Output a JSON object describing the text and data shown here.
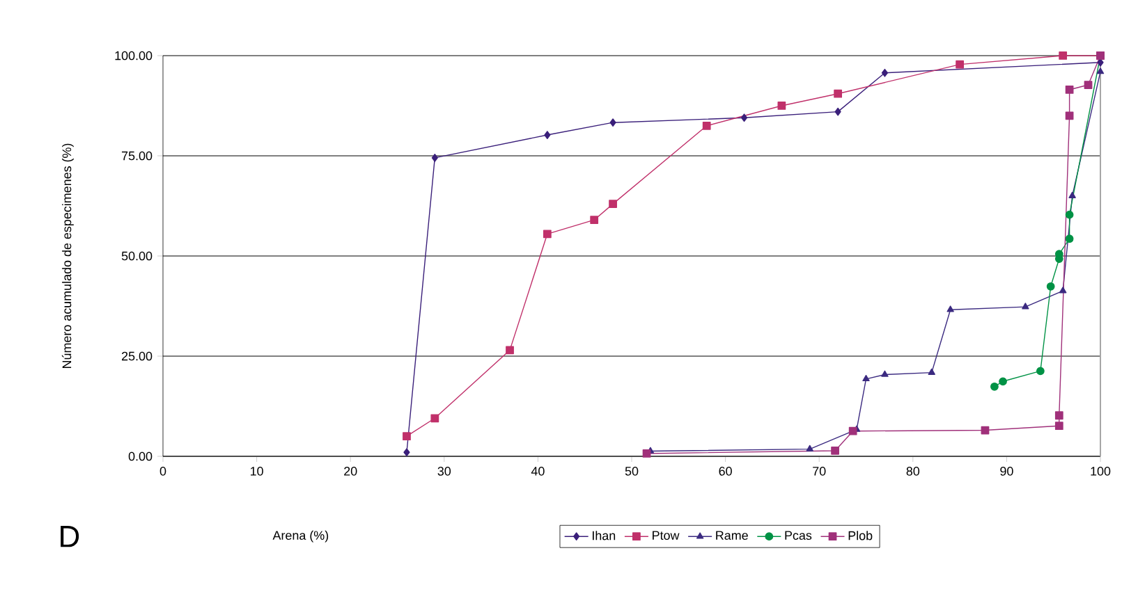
{
  "chart_data": {
    "type": "line",
    "xlabel": "Arena (%)",
    "ylabel": "Número acumulado de especimenes (%)",
    "annotations": [
      "D"
    ],
    "xlim": [
      0,
      100
    ],
    "xticks": [
      0,
      10,
      20,
      30,
      40,
      50,
      60,
      70,
      80,
      90,
      100
    ],
    "ylim": [
      0,
      100
    ],
    "yticks": [
      {
        "value": 0,
        "label": "0.00"
      },
      {
        "value": 25,
        "label": "25.00"
      },
      {
        "value": 50,
        "label": "50.00"
      },
      {
        "value": 75,
        "label": "75.00"
      },
      {
        "value": 100,
        "label": "100.00"
      }
    ],
    "grid": "y",
    "legend": "bottom",
    "series": [
      {
        "name": "Ihan",
        "color": "#3a1f7a",
        "marker": "diamond",
        "x": [
          26,
          29,
          41,
          48,
          62,
          72,
          77,
          100
        ],
        "values": [
          1,
          74.5,
          80.2,
          83.3,
          84.5,
          86,
          95.7,
          98.3
        ]
      },
      {
        "name": "Ptow",
        "color": "#c0306a",
        "marker": "square",
        "x": [
          26,
          29,
          37,
          41,
          46,
          48,
          58,
          66,
          72,
          85,
          96,
          100
        ],
        "values": [
          5,
          9.5,
          26.5,
          55.5,
          59,
          63,
          82.5,
          87.5,
          90.5,
          97.8,
          100,
          100
        ]
      },
      {
        "name": "Rame",
        "color": "#3b2a80",
        "marker": "triangle",
        "x": [
          52,
          69,
          74,
          75,
          77,
          82,
          84,
          92,
          96,
          97,
          100
        ],
        "values": [
          1.3,
          1.8,
          6.7,
          19.3,
          20.4,
          20.9,
          36.6,
          37.3,
          41.3,
          65,
          96
        ]
      },
      {
        "name": "Pcas",
        "color": "#009245",
        "marker": "circle",
        "x": [
          88.7,
          89.6,
          93.6,
          94.7,
          95.6,
          95.6,
          96.7,
          96.7,
          100
        ],
        "values": [
          17.4,
          18.7,
          21.3,
          42.4,
          49.3,
          50.5,
          54.3,
          60.3,
          100
        ]
      },
      {
        "name": "Plob",
        "color": "#a0307a",
        "marker": "square",
        "x": [
          51.6,
          71.7,
          73.6,
          87.7,
          95.6,
          95.6,
          96.7,
          96.7,
          98.7,
          100
        ],
        "values": [
          0.7,
          1.4,
          6.3,
          6.5,
          7.6,
          10.2,
          85,
          91.5,
          92.7,
          100
        ]
      }
    ]
  }
}
